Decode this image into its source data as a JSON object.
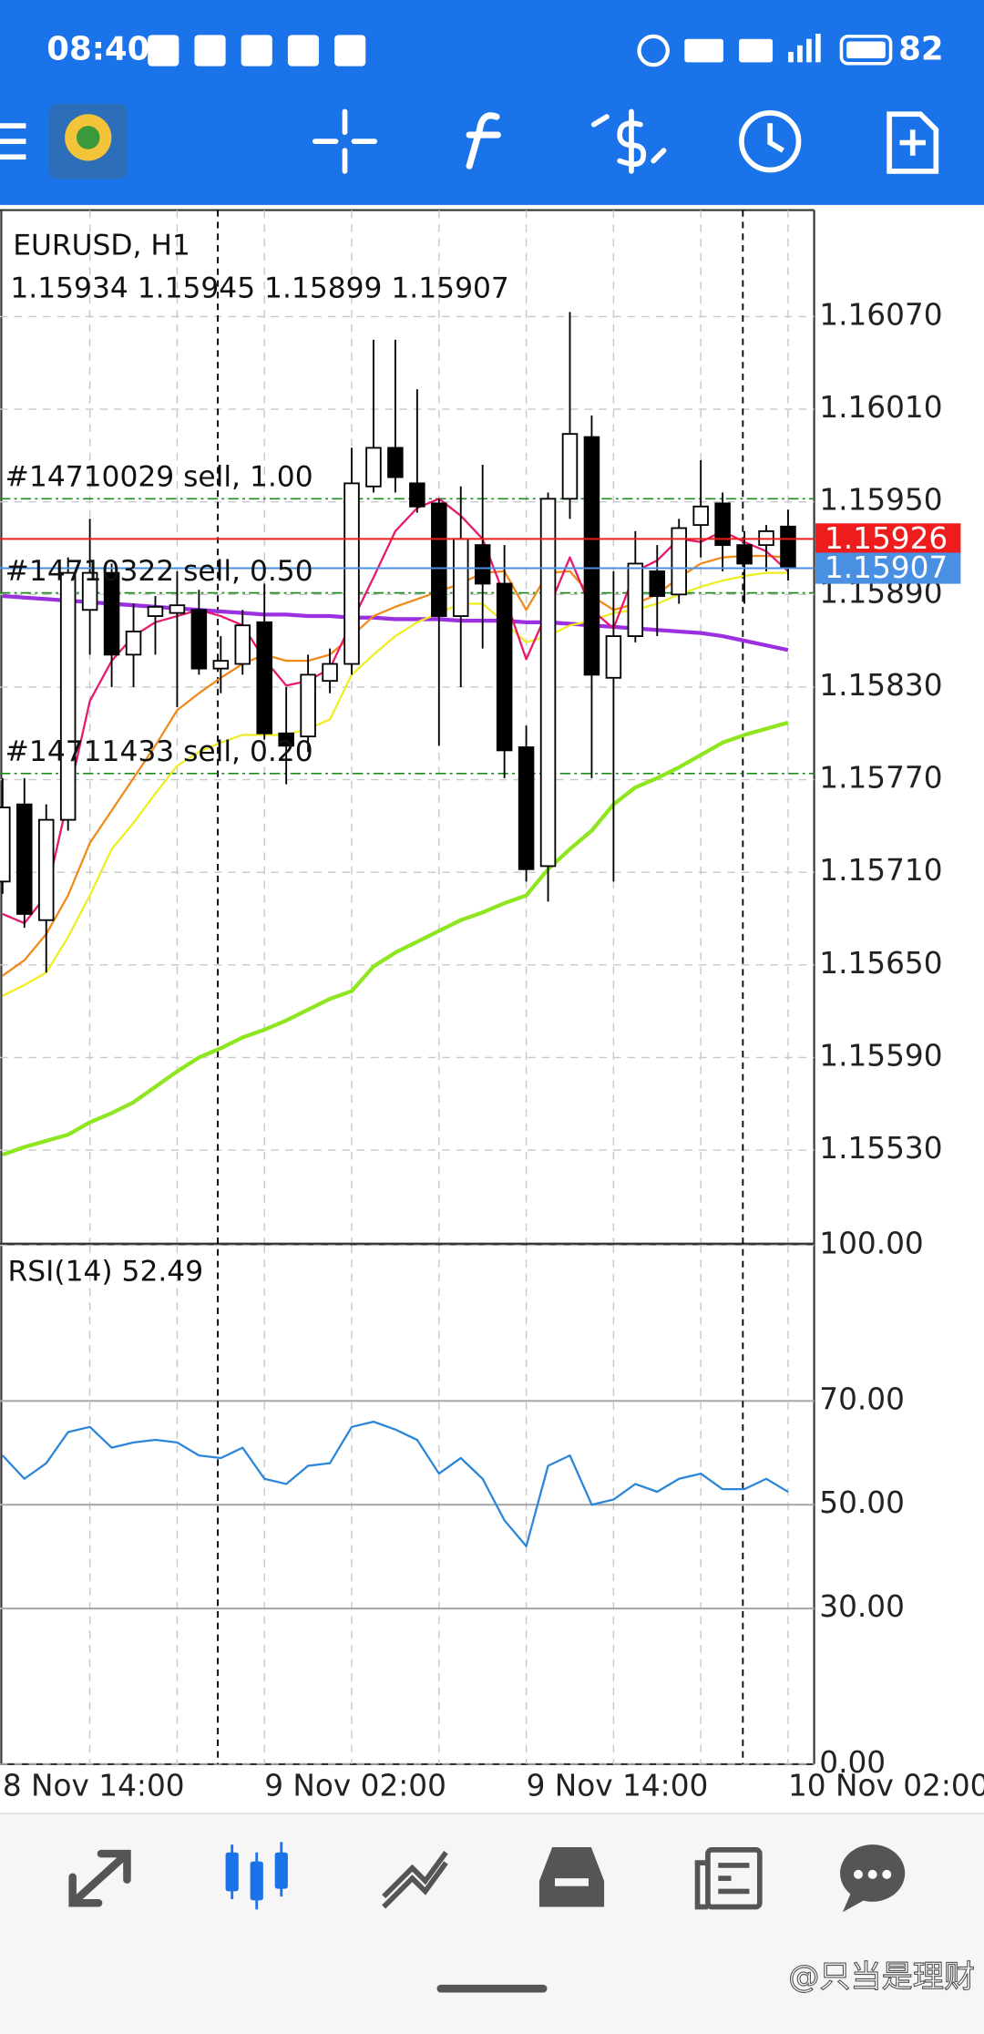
{
  "status_bar": {
    "time": "08:40",
    "battery": "82"
  },
  "watermark": "@只当是理财",
  "chart_data": [
    {
      "type": "candlestick",
      "title": "EURUSD, H1",
      "subtitle": "1.15934 1.15945 1.15899 1.15907",
      "categories": [
        "8 Nov 14:00",
        null,
        null,
        null,
        null,
        null,
        null,
        null,
        null,
        null,
        null,
        null,
        "9 Nov 02:00",
        null,
        null,
        null,
        null,
        null,
        null,
        null,
        null,
        null,
        null,
        null,
        "9 Nov 14:00",
        null,
        null,
        null,
        null,
        null,
        null,
        null,
        null,
        null,
        null,
        null,
        "10 Nov 02:00"
      ],
      "open": [
        1.15704,
        1.15754,
        1.15679,
        1.15744,
        1.1588,
        1.15904,
        1.15851,
        1.15876,
        1.15878,
        1.1588,
        1.15842,
        1.15845,
        1.15872,
        1.158,
        1.15798,
        1.15834,
        1.15845,
        1.1596,
        1.15985,
        1.15962,
        1.15949,
        1.15876,
        1.15922,
        1.15897,
        1.15791,
        1.15714,
        1.15952,
        1.15992,
        1.15836,
        1.15863,
        1.15905,
        1.1589,
        1.15935,
        1.15949,
        1.15922,
        1.15922,
        1.15934
      ],
      "high": [
        1.15771,
        1.15771,
        1.15754,
        1.15914,
        1.15939,
        1.1591,
        1.15884,
        1.15889,
        1.15905,
        1.15893,
        1.15863,
        1.1588,
        1.15897,
        1.1583,
        1.15851,
        1.15855,
        1.15985,
        1.16055,
        1.16055,
        1.16023,
        1.15952,
        1.1596,
        1.15974,
        1.15922,
        1.15805,
        1.15956,
        1.16073,
        1.16006,
        1.15905,
        1.15931,
        1.15922,
        1.15939,
        1.15977,
        1.15956,
        1.15931,
        1.15935,
        1.15945
      ],
      "low": [
        1.15696,
        1.15674,
        1.15645,
        1.15737,
        1.15851,
        1.1583,
        1.1583,
        1.15851,
        1.15817,
        1.15838,
        1.15826,
        1.15838,
        1.15796,
        1.15767,
        1.15788,
        1.15826,
        1.15838,
        1.15956,
        1.15956,
        1.15943,
        1.15792,
        1.1583,
        1.15855,
        1.15771,
        1.15704,
        1.15691,
        1.15939,
        1.15771,
        1.15704,
        1.15859,
        1.15863,
        1.15884,
        1.15914,
        1.15905,
        1.15884,
        1.15905,
        1.15899
      ],
      "close": [
        1.15752,
        1.15683,
        1.15744,
        1.15904,
        1.15904,
        1.15851,
        1.15866,
        1.15882,
        1.15883,
        1.15842,
        1.15847,
        1.1587,
        1.158,
        1.15792,
        1.15838,
        1.15845,
        1.15962,
        1.15985,
        1.15966,
        1.15947,
        1.15876,
        1.15926,
        1.15897,
        1.15789,
        1.15712,
        1.15952,
        1.15994,
        1.15838,
        1.15863,
        1.1591,
        1.15889,
        1.15933,
        1.15947,
        1.15922,
        1.1591,
        1.15931,
        1.15907
      ],
      "series": [
        {
          "color": "#8ee61e",
          "values": [
            1.15527,
            1.15532,
            1.15536,
            1.1554,
            1.15548,
            1.15554,
            1.15561,
            1.15571,
            1.15581,
            1.1559,
            1.15596,
            1.15603,
            1.15608,
            1.15614,
            1.15621,
            1.15628,
            1.15633,
            1.15649,
            1.15658,
            1.15665,
            1.15672,
            1.15679,
            1.15684,
            1.1569,
            1.15695,
            1.15712,
            1.15725,
            1.15737,
            1.15754,
            1.15765,
            1.15771,
            1.15778,
            1.15786,
            1.15794,
            1.15799,
            1.15803,
            1.15807
          ]
        },
        {
          "color": "#9b30e0",
          "values": [
            1.15889,
            1.15888,
            1.15887,
            1.15886,
            1.15885,
            1.15884,
            1.15883,
            1.15882,
            1.15881,
            1.1588,
            1.15879,
            1.15878,
            1.15877,
            1.15877,
            1.15876,
            1.15876,
            1.15875,
            1.15875,
            1.15874,
            1.15874,
            1.15874,
            1.15873,
            1.15873,
            1.15873,
            1.15872,
            1.15872,
            1.15871,
            1.1587,
            1.15869,
            1.15868,
            1.15867,
            1.15866,
            1.15865,
            1.15863,
            1.1586,
            1.15857,
            1.15854
          ]
        },
        {
          "color": "#eeee22",
          "values": [
            1.1563,
            1.15637,
            1.15645,
            1.15668,
            1.15695,
            1.15725,
            1.15742,
            1.15761,
            1.15779,
            1.15788,
            1.15794,
            1.15799,
            1.15799,
            1.15799,
            1.15803,
            1.15809,
            1.15838,
            1.15851,
            1.15863,
            1.15872,
            1.15878,
            1.15884,
            1.15884,
            1.15872,
            1.15859,
            1.15863,
            1.1587,
            1.15873,
            1.15878,
            1.1588,
            1.15884,
            1.1589,
            1.15895,
            1.15899,
            1.15902,
            1.15904,
            1.15904
          ]
        },
        {
          "color": "#f28a1a",
          "values": [
            1.15643,
            1.15653,
            1.1567,
            1.15695,
            1.15729,
            1.1575,
            1.15771,
            1.15792,
            1.15815,
            1.15826,
            1.15836,
            1.15845,
            1.15851,
            1.15847,
            1.15847,
            1.15851,
            1.15863,
            1.15876,
            1.15882,
            1.15887,
            1.15892,
            1.15897,
            1.15904,
            1.15905,
            1.1588,
            1.15904,
            1.15905,
            1.15889,
            1.1588,
            1.15884,
            1.1589,
            1.15901,
            1.1591,
            1.15914,
            1.15915,
            1.15915,
            1.15914
          ]
        },
        {
          "color": "#e8186e",
          "values": [
            1.15683,
            1.15677,
            1.15695,
            1.15758,
            1.15821,
            1.15847,
            1.15863,
            1.15872,
            1.15876,
            1.1588,
            1.15876,
            1.1587,
            1.15848,
            1.15831,
            1.15834,
            1.15842,
            1.15872,
            1.15901,
            1.15931,
            1.15946,
            1.15952,
            1.15941,
            1.15926,
            1.15889,
            1.15848,
            1.1588,
            1.15914,
            1.1588,
            1.15868,
            1.15905,
            1.15912,
            1.15926,
            1.15924,
            1.15931,
            1.15924,
            1.15918,
            1.15905
          ]
        }
      ],
      "levels": [
        {
          "label": "#14710029 sell, 1.00",
          "value": 1.15952,
          "color": "#1f8a1f"
        },
        {
          "label": "#14710322 sell, 0.50",
          "value": 1.15891,
          "color": "#1f8a1f"
        },
        {
          "label": "#14711433 sell, 0.20",
          "value": 1.15774,
          "color": "#1f8a1f"
        }
      ],
      "price_lines": [
        {
          "label": "1.15926",
          "value": 1.15926,
          "color": "#ee1c1c"
        },
        {
          "label": "1.15907",
          "value": 1.15907,
          "color": "#4a90e2"
        }
      ],
      "ylim": [
        1.1547,
        1.16139
      ],
      "yticks": [
        {
          "value": 1.1607,
          "label": "1.16070"
        },
        {
          "value": 1.1601,
          "label": "1.16010"
        },
        {
          "value": 1.1595,
          "label": "1.15950"
        },
        {
          "value": 1.1589,
          "label": "1.15890"
        },
        {
          "value": 1.1583,
          "label": "1.15830"
        },
        {
          "value": 1.1577,
          "label": "1.15770"
        },
        {
          "value": 1.1571,
          "label": "1.15710"
        },
        {
          "value": 1.1565,
          "label": "1.15650"
        },
        {
          "value": 1.1559,
          "label": "1.15590"
        },
        {
          "value": 1.1553,
          "label": "1.15530"
        }
      ],
      "grid": true
    },
    {
      "type": "line",
      "title": "RSI(14) 52.49",
      "series": [
        {
          "color": "#2b86d9",
          "values": [
            59.5,
            55,
            58,
            64,
            65,
            61,
            62,
            62.5,
            62,
            59.5,
            59,
            61,
            55,
            54,
            57.5,
            58,
            65,
            66,
            64.5,
            62.5,
            56,
            59,
            55,
            47,
            42,
            57.5,
            59.5,
            50,
            51,
            54,
            52.5,
            55,
            56,
            53,
            53,
            55,
            52.49
          ]
        }
      ],
      "ylim": [
        0,
        100
      ],
      "yticks": [
        {
          "value": 100,
          "label": "100.00"
        },
        {
          "value": 70,
          "label": "70.00"
        },
        {
          "value": 50,
          "label": "50.00"
        },
        {
          "value": 30,
          "label": "30.00"
        },
        {
          "value": 0,
          "label": "0.00"
        }
      ],
      "grid": true
    }
  ]
}
